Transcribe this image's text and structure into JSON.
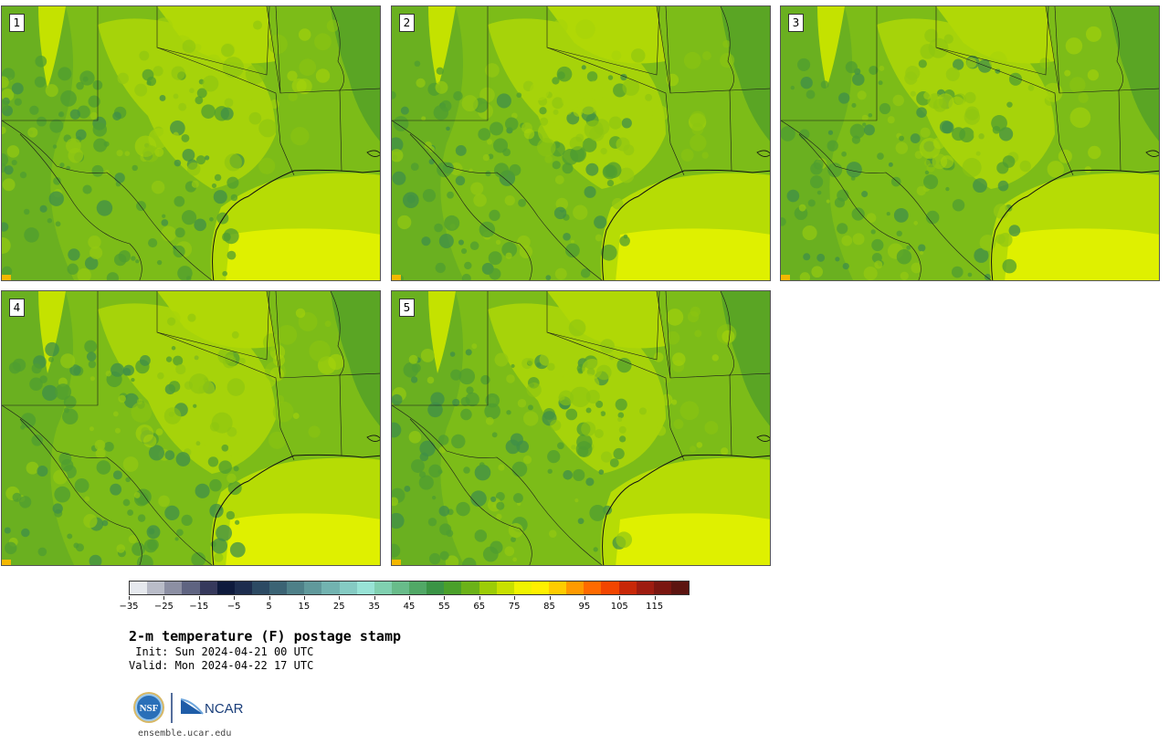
{
  "panels": [
    {
      "number": "1"
    },
    {
      "number": "2"
    },
    {
      "number": "3"
    },
    {
      "number": "4"
    },
    {
      "number": "5"
    }
  ],
  "colorbar": {
    "colors": [
      "#e6e9ee",
      "#b9bcc8",
      "#8c8fa3",
      "#5f6481",
      "#36395c",
      "#0e1a3c",
      "#1d2d4e",
      "#2c4a63",
      "#3b6374",
      "#4e8088",
      "#60999b",
      "#72b3b0",
      "#85cbc3",
      "#98e3d6",
      "#80d0b0",
      "#68bc8a",
      "#51a866",
      "#3a9445",
      "#4aa02a",
      "#6bb218",
      "#9ccc06",
      "#c8e000",
      "#f0f400",
      "#fff000",
      "#ffcc00",
      "#ff9a00",
      "#ff6a00",
      "#f24500",
      "#c82808",
      "#9e1c10",
      "#7a1610",
      "#5c1410"
    ],
    "tick_labels": [
      "−35",
      "−25",
      "−15",
      "−5",
      "5",
      "15",
      "25",
      "35",
      "45",
      "55",
      "65",
      "75",
      "85",
      "95",
      "105",
      "115"
    ]
  },
  "title": "2-m temperature (F) postage stamp",
  "init": " Init: Sun 2024-04-21 00 UTC",
  "valid": "Valid: Mon 2024-04-22 17 UTC",
  "logos": {
    "nsf": "NSF",
    "ncar": "NCAR"
  },
  "credit": "ensemble.ucar.edu"
}
